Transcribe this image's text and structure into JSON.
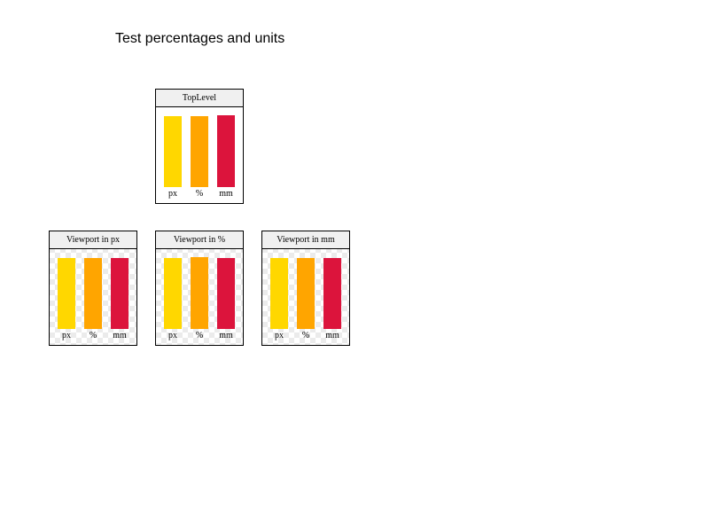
{
  "title": "Test percentages and units",
  "panels": {
    "toplevel": {
      "header": "TopLevel",
      "labels": [
        "px",
        "%",
        "mm"
      ]
    },
    "viewport_px": {
      "header": "Viewport in px",
      "labels": [
        "px",
        "%",
        "mm"
      ]
    },
    "viewport_pct": {
      "header": "Viewport in %",
      "labels": [
        "px",
        "%",
        "mm"
      ]
    },
    "viewport_mm": {
      "header": "Viewport in mm",
      "labels": [
        "px",
        "%",
        "mm"
      ]
    }
  },
  "colors": {
    "px": "#ffd700",
    "pct": "#ffa500",
    "mm": "#dc143c"
  }
}
